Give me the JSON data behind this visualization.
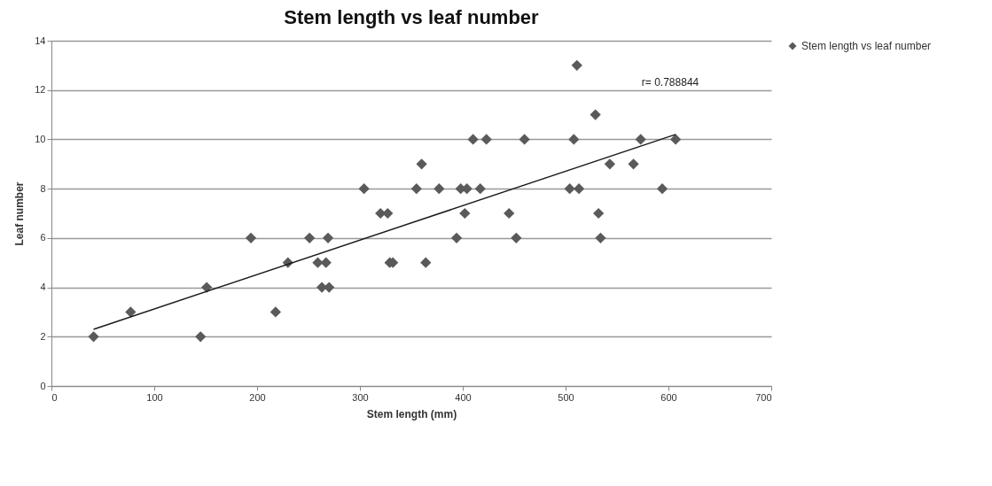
{
  "chart_data": {
    "type": "scatter",
    "title": "Stem length vs leaf number",
    "xlabel": "Stem length (mm)",
    "ylabel": "Leaf number",
    "xlim": [
      0,
      700
    ],
    "xticks": [
      0,
      100,
      200,
      300,
      400,
      500,
      600,
      700
    ],
    "ylim": [
      0,
      14
    ],
    "yticks": [
      0,
      2,
      4,
      6,
      8,
      10,
      12,
      14
    ],
    "grid": "y",
    "legend": "right",
    "marker": "diamond",
    "annotations": [
      "r= 0.788844"
    ],
    "series": [
      {
        "name": "Stem length vs leaf number",
        "color": "#5a5a5a",
        "x": [
          41,
          77,
          145,
          151,
          194,
          218,
          230,
          251,
          259,
          267,
          263,
          270,
          269,
          304,
          320,
          327,
          329,
          332,
          355,
          360,
          364,
          377,
          394,
          398,
          402,
          404,
          410,
          417,
          423,
          445,
          452,
          460,
          504,
          508,
          511,
          513,
          529,
          532,
          534,
          543,
          566,
          573,
          594,
          607
        ],
        "values": [
          2,
          3,
          2,
          4,
          6,
          3,
          5,
          6,
          5,
          5,
          4,
          4,
          6,
          8,
          7,
          7,
          5,
          5,
          8,
          9,
          5,
          8,
          6,
          8,
          7,
          8,
          10,
          8,
          10,
          7,
          6,
          10,
          8,
          10,
          13,
          8,
          11,
          7,
          6,
          9,
          9,
          10,
          8,
          10
        ]
      },
      {
        "type": "line",
        "color": "#1a1a1a",
        "x": [
          41,
          607
        ],
        "values": [
          2.3,
          10.2
        ],
        "marker": "none"
      }
    ]
  }
}
